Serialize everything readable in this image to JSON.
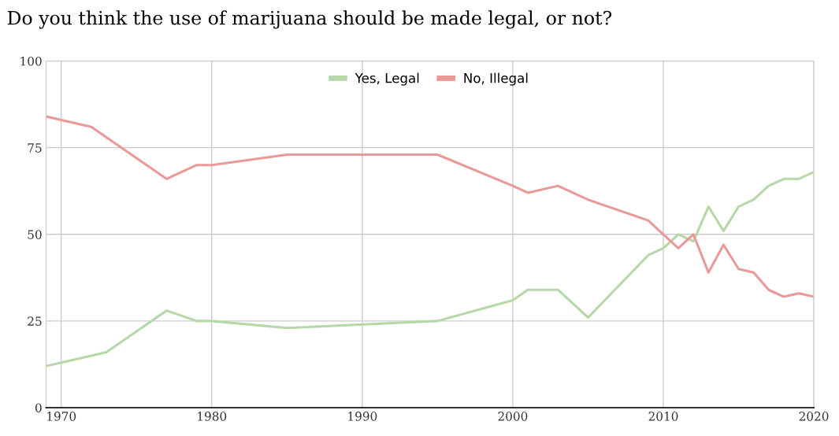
{
  "chart_data": {
    "type": "line",
    "title": "Do you think the use of marijuana should be made legal, or not?",
    "xlim": [
      1969,
      2020
    ],
    "xticks": [
      1970,
      1980,
      1990,
      2000,
      2010,
      2020
    ],
    "ylim": [
      0,
      100
    ],
    "yticks": [
      0,
      25,
      50,
      75,
      100
    ],
    "grid": true,
    "legend": "top",
    "marker": "none",
    "line_style": "solid",
    "series": [
      {
        "name": "Yes, Legal",
        "color": "#b6d7a8",
        "x": [
          1969,
          1972,
          1973,
          1977,
          1979,
          1980,
          1985,
          1995,
          2000,
          2001,
          2003,
          2005,
          2009,
          2010,
          2011,
          2012,
          2013,
          2014,
          2015,
          2016,
          2017,
          2018,
          2019,
          2020
        ],
        "values": [
          12,
          15,
          16,
          28,
          25,
          25,
          23,
          25,
          31,
          34,
          34,
          26,
          44,
          46,
          50,
          48,
          58,
          51,
          58,
          60,
          64,
          66,
          66,
          68
        ]
      },
      {
        "name": "No, Illegal",
        "color": "#ea9999",
        "x": [
          1969,
          1972,
          1977,
          1979,
          1980,
          1985,
          1995,
          2000,
          2001,
          2003,
          2005,
          2009,
          2010,
          2011,
          2012,
          2013,
          2014,
          2015,
          2016,
          2017,
          2018,
          2019,
          2020
        ],
        "values": [
          84,
          81,
          66,
          70,
          70,
          73,
          73,
          64,
          62,
          64,
          60,
          54,
          50,
          46,
          50,
          39,
          47,
          40,
          39,
          34,
          32,
          33,
          32
        ]
      }
    ]
  }
}
